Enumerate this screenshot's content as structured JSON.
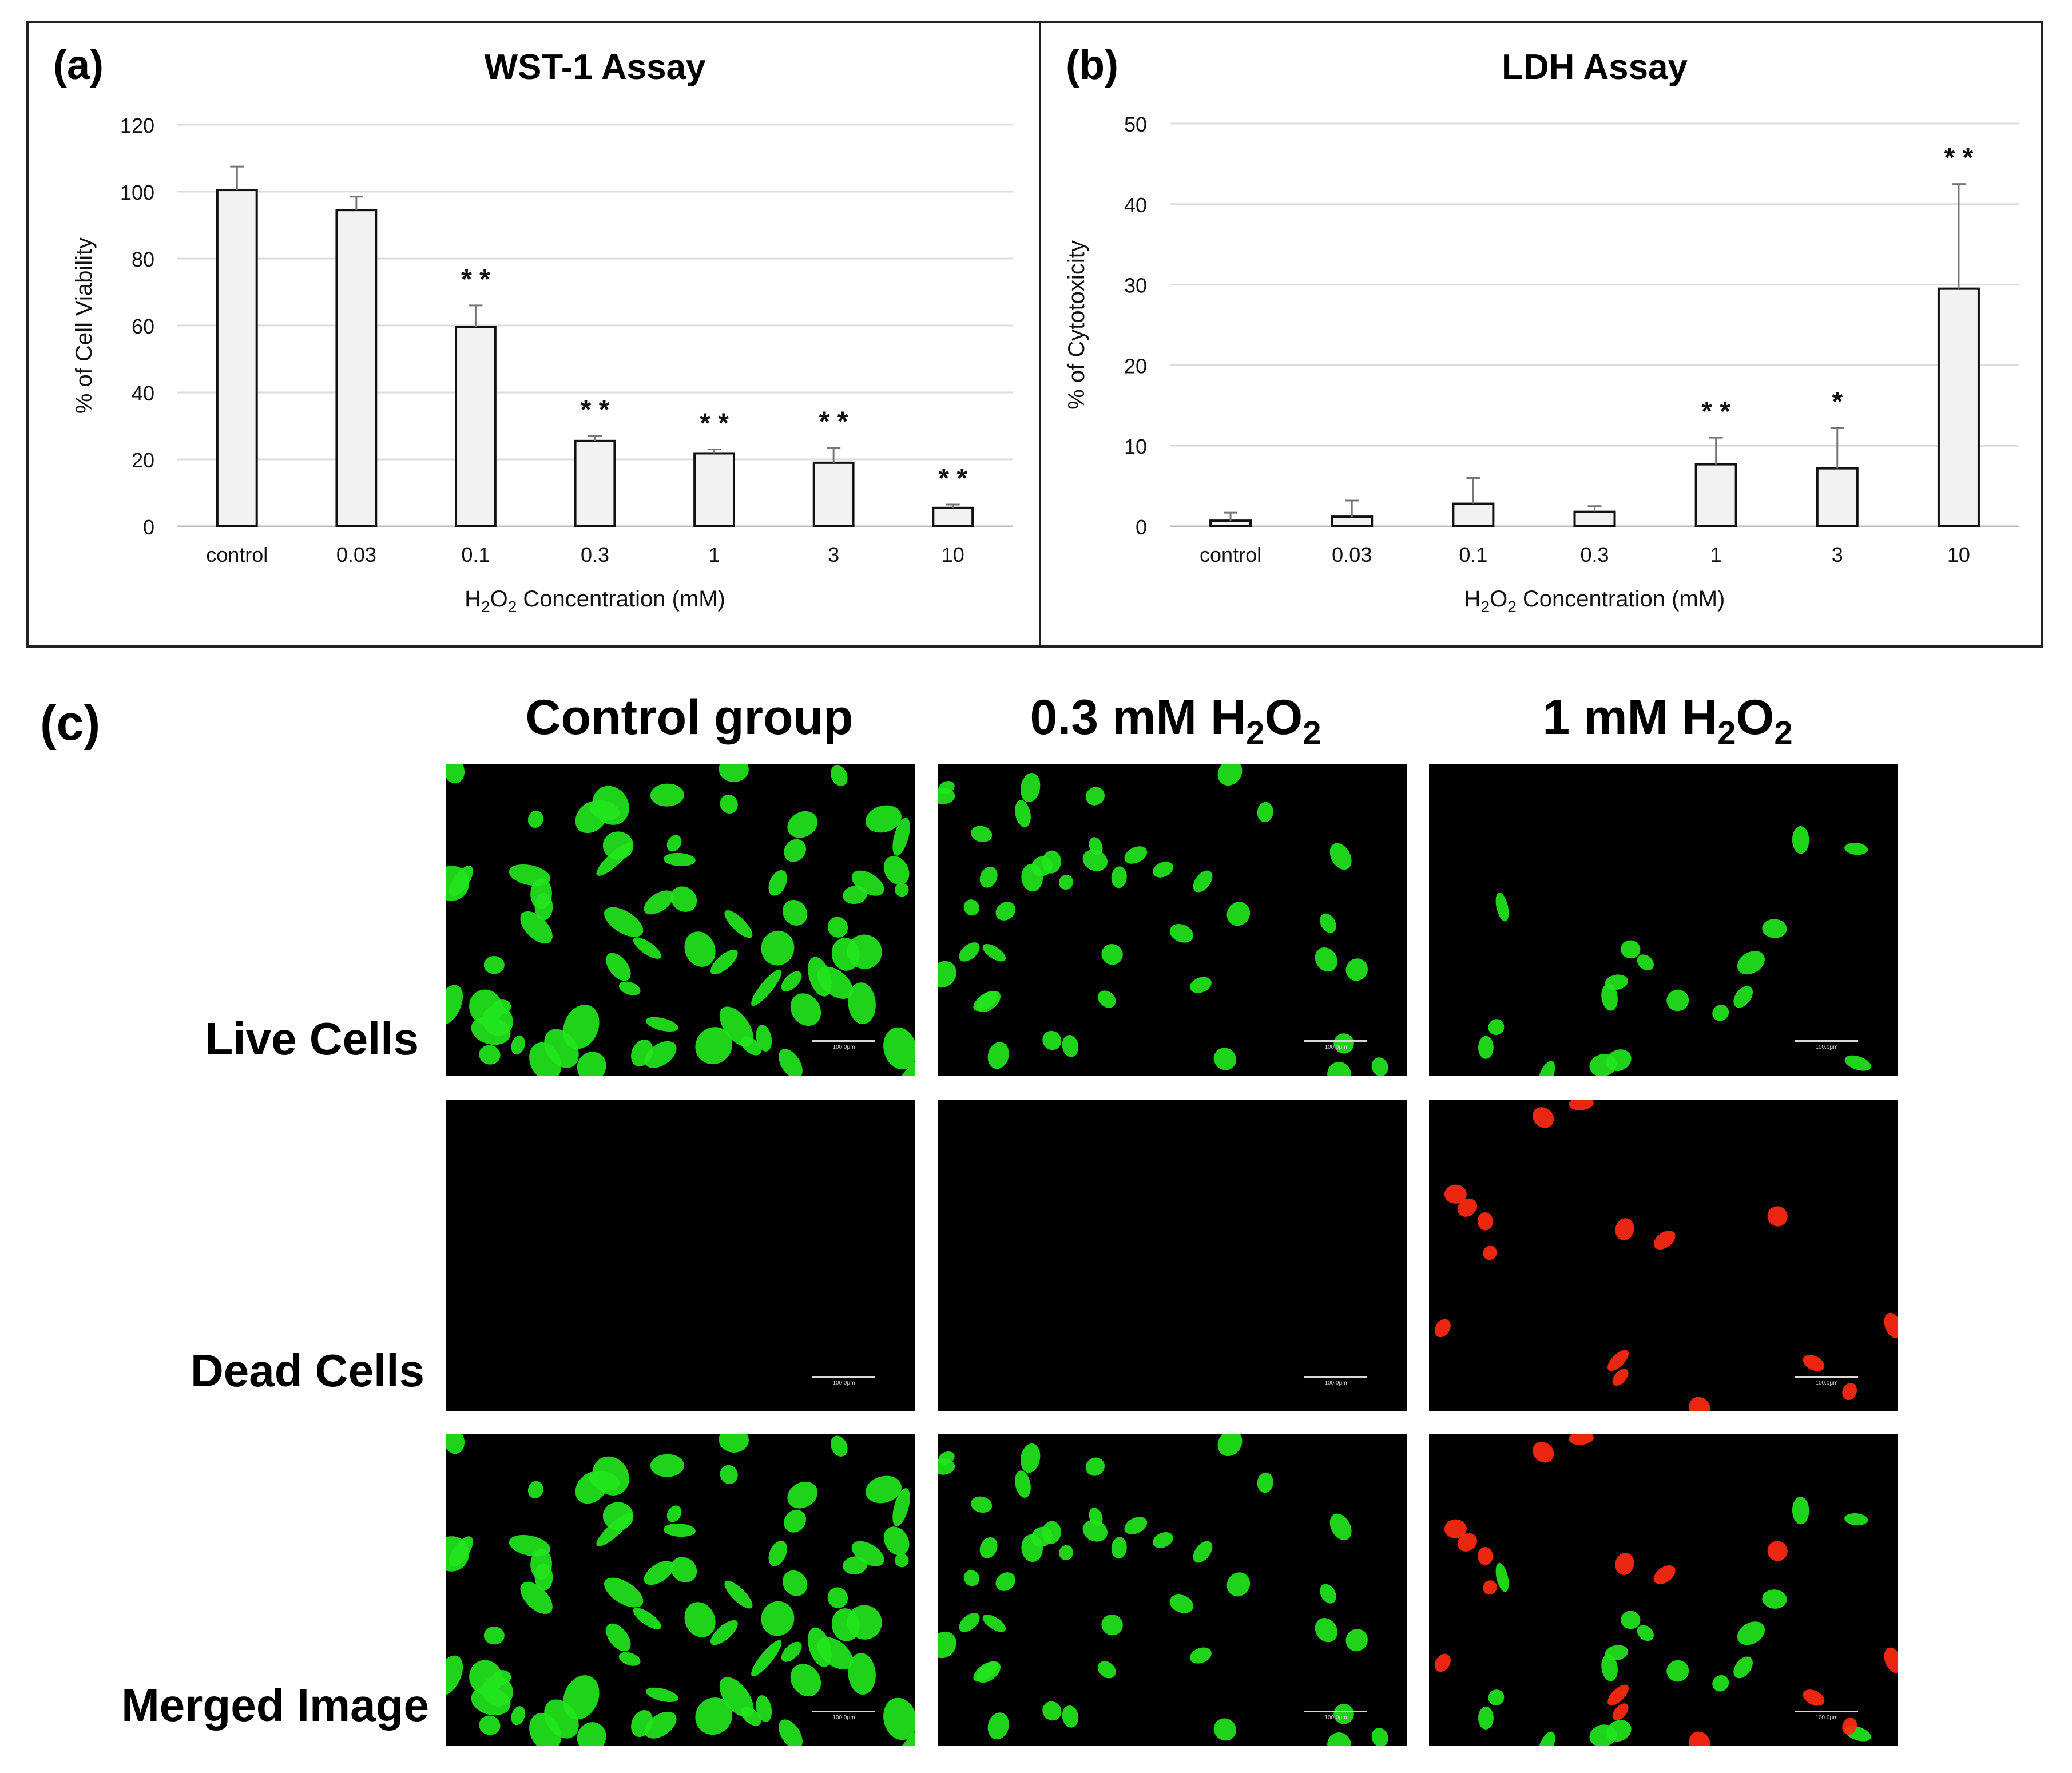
{
  "chart_data": [
    {
      "panel": "(a)",
      "type": "bar",
      "title": "WST-1 Assay",
      "xlabel_main": "H",
      "xlabel_sub1": "2",
      "xlabel_mid": "O",
      "xlabel_sub2": "2",
      "xlabel_tail": " Concentration (mM)",
      "ylabel": "% of Cell Viability",
      "categories": [
        "control",
        "0.03",
        "0.1",
        "0.3",
        "1",
        "3",
        "10"
      ],
      "values": [
        100.5,
        94.5,
        59.5,
        25.5,
        21.8,
        19,
        5.5
      ],
      "errors": [
        7,
        4,
        6.5,
        1.5,
        1.2,
        4.5,
        1
      ],
      "significance": [
        "",
        "",
        "* *",
        "* *",
        "* *",
        "* *",
        "* *"
      ],
      "ylim": [
        0,
        120
      ],
      "yticks": [
        "0",
        "20",
        "40",
        "60",
        "80",
        "100",
        "120"
      ],
      "grid": true
    },
    {
      "panel": "(b)",
      "type": "bar",
      "title": "LDH Assay",
      "xlabel_main": "H",
      "xlabel_sub1": "2",
      "xlabel_mid": "O",
      "xlabel_sub2": "2",
      "xlabel_tail": " Concentration (mM)",
      "ylabel": "% of Cytotoxicity",
      "categories": [
        "control",
        "0.03",
        "0.1",
        "0.3",
        "1",
        "3",
        "10"
      ],
      "values": [
        0.7,
        1.2,
        2.8,
        1.8,
        7.7,
        7.2,
        29.5
      ],
      "errors": [
        1,
        2,
        3.2,
        0.7,
        3.3,
        5,
        13
      ],
      "significance": [
        "",
        "",
        "",
        "",
        "* *",
        "*",
        "* *"
      ],
      "ylim": [
        0,
        50
      ],
      "yticks": [
        "0",
        "10",
        "20",
        "30",
        "40",
        "50"
      ],
      "grid": true
    }
  ],
  "panel_c": {
    "label": "(c)",
    "columns": [
      {
        "name": "Control group",
        "sub": ""
      },
      {
        "name": "0.3 mM H",
        "sub": "2",
        "mid": "O",
        "sub2": "2"
      },
      {
        "name": "1 mM H",
        "sub": "2",
        "mid": "O",
        "sub2": "2"
      }
    ],
    "rows": [
      "Live Cells",
      "Dead Cells",
      "Merged Image"
    ],
    "scale_bar_label": "100.0μm",
    "colors": {
      "live": "#22e51c",
      "dead": "#ff2a14",
      "background": "#000000"
    }
  }
}
